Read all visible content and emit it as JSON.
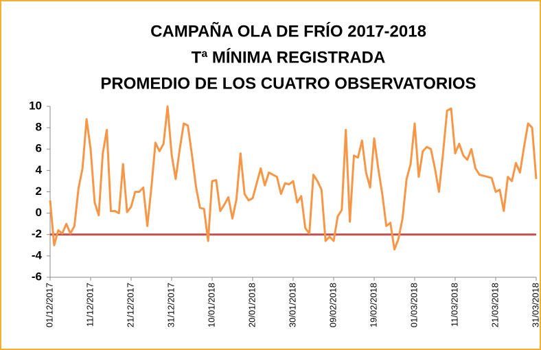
{
  "chart_data": {
    "type": "line",
    "title": [
      "CAMPAÑA OLA DE FRÍO 2017-2018",
      "Tª MÍNIMA REGISTRADA",
      "PROMEDIO DE LOS CUATRO OBSERVATORIOS"
    ],
    "categories": [
      "01/12/2017",
      null,
      null,
      null,
      null,
      null,
      null,
      null,
      null,
      null,
      "11/12/2017",
      null,
      null,
      null,
      null,
      null,
      null,
      null,
      null,
      null,
      "21/12/2017",
      null,
      null,
      null,
      null,
      null,
      null,
      null,
      null,
      null,
      "31/12/2017",
      null,
      null,
      null,
      null,
      null,
      null,
      null,
      null,
      null,
      "10/01/2018",
      null,
      null,
      null,
      null,
      null,
      null,
      null,
      null,
      null,
      "20/01/2018",
      null,
      null,
      null,
      null,
      null,
      null,
      null,
      null,
      null,
      "30/01/2018",
      null,
      null,
      null,
      null,
      null,
      null,
      null,
      null,
      null,
      "09/02/2018",
      null,
      null,
      null,
      null,
      null,
      null,
      null,
      null,
      null,
      "19/02/2018",
      null,
      null,
      null,
      null,
      null,
      null,
      null,
      null,
      null,
      "01/03/2018",
      null,
      null,
      null,
      null,
      null,
      null,
      null,
      null,
      null,
      "11/03/2018",
      null,
      null,
      null,
      null,
      null,
      null,
      null,
      null,
      null,
      "21/03/2018",
      null,
      null,
      null,
      null,
      null,
      null,
      null,
      null,
      null,
      "31/03/2018"
    ],
    "values": [
      1.2,
      -3.0,
      -1.6,
      -1.9,
      -1.0,
      -1.9,
      -1.2,
      2.3,
      4.2,
      8.8,
      6.0,
      1.0,
      -0.2,
      5.6,
      7.8,
      0.2,
      0.2,
      0.0,
      4.6,
      0.1,
      0.6,
      2.0,
      2.0,
      2.4,
      -1.2,
      2.4,
      6.6,
      5.8,
      6.5,
      10.0,
      5.5,
      3.2,
      6.0,
      8.4,
      8.2,
      5.5,
      2.5,
      0.5,
      0.4,
      -2.6,
      3.0,
      3.1,
      0.2,
      0.8,
      1.5,
      -0.5,
      1.3,
      5.6,
      1.8,
      1.2,
      1.4,
      2.8,
      4.2,
      2.6,
      3.8,
      3.6,
      3.4,
      1.8,
      2.8,
      2.7,
      3.0,
      1.0,
      1.6,
      -1.4,
      -1.9,
      3.6,
      3.0,
      2.2,
      -2.6,
      -2.2,
      -2.6,
      -0.3,
      0.3,
      7.8,
      -0.8,
      5.4,
      5.2,
      6.8,
      3.8,
      2.4,
      7.0,
      4.2,
      1.8,
      -1.2,
      -0.9,
      -3.4,
      -2.4,
      -0.5,
      3.2,
      4.6,
      8.4,
      3.4,
      5.8,
      6.2,
      6.0,
      4.2,
      2.0,
      5.6,
      9.6,
      9.8,
      5.6,
      6.5,
      5.4,
      5.0,
      6.0,
      4.2,
      3.6,
      3.5,
      3.4,
      3.3,
      2.0,
      2.2,
      0.2,
      3.4,
      3.0,
      4.7,
      3.8,
      6.2,
      8.4,
      8.0,
      3.2
    ],
    "color": "#f79646",
    "reference_line": {
      "value": -2,
      "color": "#c0504d"
    },
    "ylim": [
      -6,
      10
    ],
    "yticks": [
      -6,
      -4,
      -2,
      0,
      2,
      4,
      6,
      8,
      10
    ],
    "grid": false
  }
}
